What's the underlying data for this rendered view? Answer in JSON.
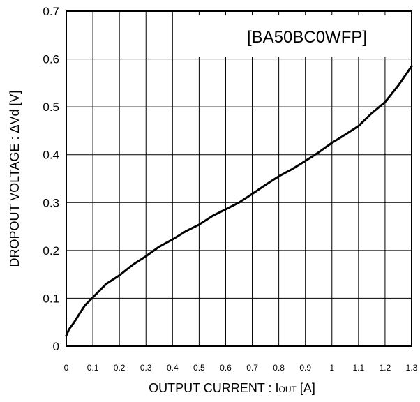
{
  "chart_data": {
    "type": "line",
    "title": "",
    "legend_label": "[BA50BC0WFP]",
    "legend_placement": "top-right",
    "xlabel_main": "OUTPUT CURRENT : I",
    "xlabel_sub": "OUT",
    "xlabel_unit": " [A]",
    "ylabel": "DROPOUT VOLTAGE : ΔVd [V]",
    "xlim": [
      0,
      1.3
    ],
    "ylim": [
      0,
      0.7
    ],
    "grid": true,
    "x_ticks": [
      0,
      0.1,
      0.2,
      0.3,
      0.4,
      0.5,
      0.6,
      0.7,
      0.8,
      0.9,
      1,
      1.1,
      1.2,
      1.3
    ],
    "x_tick_labels": [
      "0",
      "0.1",
      "0.2",
      "0.3",
      "0.4",
      "0.5",
      "0.6",
      "0.7",
      "0.8",
      "0.9",
      "1",
      "1.1",
      "1.2",
      "1.3"
    ],
    "y_ticks": [
      0,
      0.1,
      0.2,
      0.3,
      0.4,
      0.5,
      0.6,
      0.7
    ],
    "y_tick_labels": [
      "0",
      "0.1",
      "0.2",
      "0.3",
      "0.4",
      "0.5",
      "0.6",
      "0.7"
    ],
    "series": [
      {
        "color": "#000000",
        "x": [
          0,
          0.01,
          0.03,
          0.05,
          0.07,
          0.1,
          0.15,
          0.2,
          0.25,
          0.3,
          0.35,
          0.4,
          0.45,
          0.5,
          0.55,
          0.6,
          0.65,
          0.7,
          0.75,
          0.8,
          0.85,
          0.9,
          0.95,
          1.0,
          1.05,
          1.1,
          1.15,
          1.2,
          1.25,
          1.3
        ],
        "y": [
          0.022,
          0.035,
          0.05,
          0.068,
          0.085,
          0.102,
          0.13,
          0.148,
          0.17,
          0.188,
          0.208,
          0.223,
          0.24,
          0.254,
          0.272,
          0.286,
          0.3,
          0.318,
          0.337,
          0.355,
          0.37,
          0.387,
          0.405,
          0.425,
          0.442,
          0.46,
          0.487,
          0.51,
          0.545,
          0.585
        ]
      }
    ]
  }
}
